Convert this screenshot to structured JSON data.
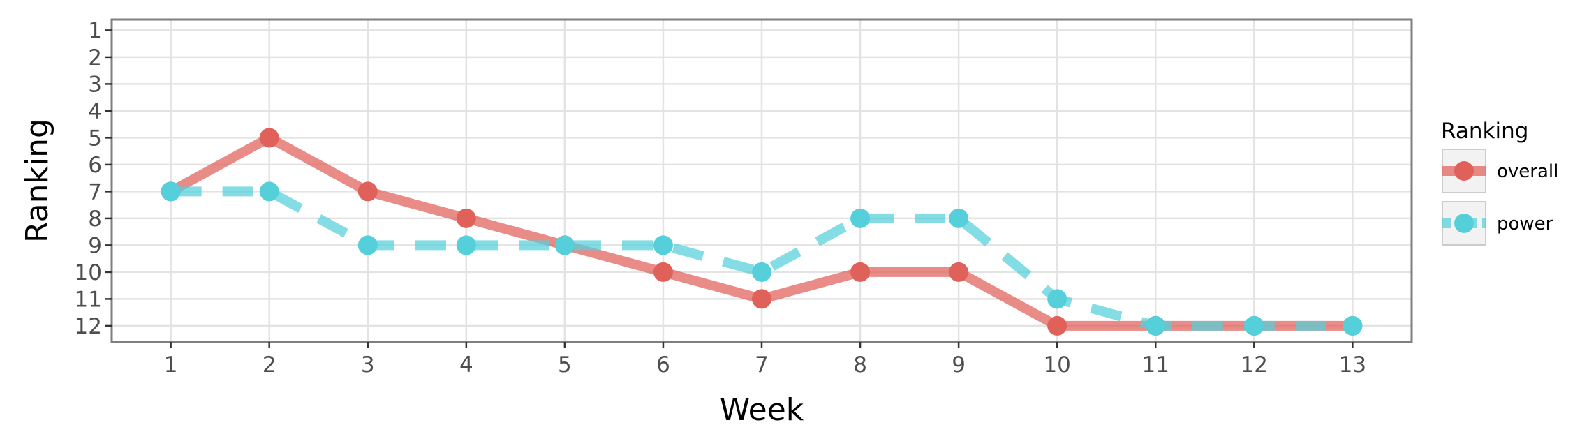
{
  "chart_data": {
    "type": "line",
    "xlabel": "Week",
    "ylabel": "Ranking",
    "x": [
      1,
      2,
      3,
      4,
      5,
      6,
      7,
      8,
      9,
      10,
      11,
      12,
      13
    ],
    "x_ticks": [
      "1",
      "2",
      "3",
      "4",
      "5",
      "6",
      "7",
      "8",
      "9",
      "10",
      "11",
      "12",
      "13"
    ],
    "y_ticks": [
      "1",
      "2",
      "3",
      "4",
      "5",
      "6",
      "7",
      "8",
      "9",
      "10",
      "11",
      "12"
    ],
    "xlim": [
      0.4,
      13.6
    ],
    "ylim": [
      12.6,
      0.6
    ],
    "y_reversed": true,
    "grid": true,
    "legend": {
      "title": "Ranking",
      "position": "right"
    },
    "series": [
      {
        "name": "overall",
        "color": "#E0605A",
        "linestyle": "solid",
        "values": [
          7,
          5,
          7,
          8,
          9,
          10,
          11,
          10,
          10,
          12,
          12,
          12,
          12
        ]
      },
      {
        "name": "power",
        "color": "#55D0DA",
        "linestyle": "dashed",
        "values": [
          7,
          7,
          9,
          9,
          9,
          9,
          10,
          8,
          8,
          11,
          12,
          12,
          12
        ]
      }
    ]
  }
}
